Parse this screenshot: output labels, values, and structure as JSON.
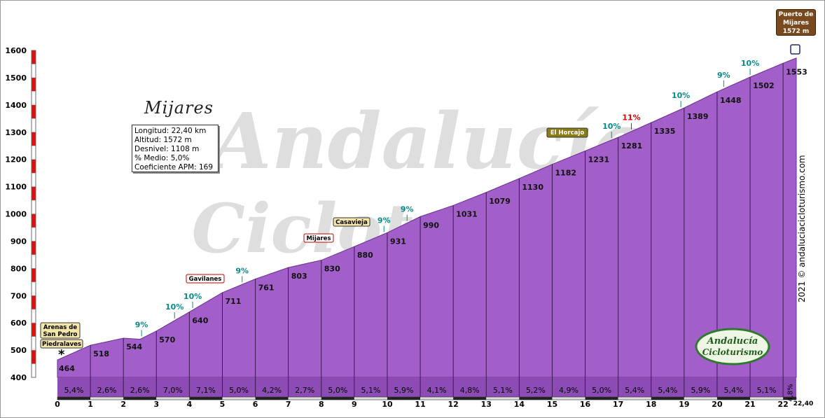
{
  "climb": {
    "name": "Mijares",
    "stats": [
      "Longitud: 22,40 km",
      "Altitud: 1572 m",
      "Desnivel: 1108 m",
      "% Medio: 5,0%",
      "Coeficiente APM: 169"
    ],
    "summit": [
      "Puerto de",
      "Mijares",
      "1572 m"
    ],
    "copyright": "2021 © andaluciacicloturismo.com",
    "logo_text": [
      "Andalucía",
      "Cicloturismo"
    ],
    "watermark_text": [
      "Andalucía",
      "Cicloturismo"
    ]
  },
  "chart_data": {
    "type": "area",
    "title": "",
    "xlabel": "",
    "ylabel": "",
    "xlim": [
      0,
      22.4
    ],
    "ylim": [
      400,
      1600
    ],
    "x_ticks": [
      "0",
      "1",
      "2",
      "3",
      "4",
      "5",
      "6",
      "7",
      "8",
      "9",
      "10",
      "11",
      "12",
      "13",
      "14",
      "15",
      "16",
      "17",
      "18",
      "19",
      "20",
      "21",
      "22"
    ],
    "x_end_label": "22,40",
    "y_ticks": [
      "400",
      "500",
      "600",
      "700",
      "800",
      "900",
      "1000",
      "1100",
      "1200",
      "1300",
      "1400",
      "1500",
      "1600"
    ],
    "profile": {
      "x": [
        0,
        1,
        2,
        2.5,
        3,
        4,
        5,
        6,
        7,
        8,
        9,
        10,
        11,
        12,
        13,
        14,
        15,
        16,
        17,
        18,
        19,
        20,
        21,
        22,
        22.4
      ],
      "y": [
        464,
        518,
        544,
        540,
        570,
        640,
        711,
        761,
        803,
        830,
        880,
        931,
        990,
        1031,
        1079,
        1130,
        1182,
        1231,
        1281,
        1335,
        1389,
        1448,
        1502,
        1553,
        1572
      ]
    },
    "km_labels": {
      "x": [
        0,
        1,
        2,
        3,
        4,
        5,
        6,
        7,
        8,
        9,
        10,
        11,
        12,
        13,
        14,
        15,
        16,
        17,
        18,
        19,
        20,
        21,
        22
      ],
      "y": [
        464,
        518,
        544,
        570,
        640,
        711,
        761,
        803,
        830,
        880,
        931,
        990,
        1031,
        1079,
        1130,
        1182,
        1231,
        1281,
        1335,
        1389,
        1448,
        1502,
        1553
      ],
      "text": [
        "464",
        "518",
        "544",
        "570",
        "640",
        "711",
        "761",
        "803",
        "830",
        "880",
        "931",
        "990",
        "1031",
        "1079",
        "1130",
        "1182",
        "1231",
        "1281",
        "1335",
        "1389",
        "1448",
        "1502",
        "1553"
      ]
    },
    "segment_gradients": [
      "5,4%",
      "2,6%",
      "2,6%",
      "7,0%",
      "7,1%",
      "5,0%",
      "4,2%",
      "2,7%",
      "5,0%",
      "5,1%",
      "5,9%",
      "4,1%",
      "4,8%",
      "5,1%",
      "5,2%",
      "4,9%",
      "5,0%",
      "5,4%",
      "5,4%",
      "5,9%",
      "5,4%",
      "5,1%",
      "4,8%"
    ],
    "ramps": [
      {
        "x": 2.55,
        "text": "9%",
        "color": "#0a8a8a"
      },
      {
        "x": 3.55,
        "text": "10%",
        "color": "#0a8a8a"
      },
      {
        "x": 4.1,
        "text": "10%",
        "color": "#0a8a8a"
      },
      {
        "x": 5.6,
        "text": "9%",
        "color": "#0a8a8a"
      },
      {
        "x": 9.9,
        "text": "9%",
        "color": "#0a8a8a"
      },
      {
        "x": 10.6,
        "text": "9%",
        "color": "#0a8a8a"
      },
      {
        "x": 16.8,
        "text": "10%",
        "color": "#0a8a8a"
      },
      {
        "x": 17.4,
        "text": "11%",
        "color": "#e00000"
      },
      {
        "x": 18.9,
        "text": "10%",
        "color": "#0a8a8a"
      },
      {
        "x": 20.2,
        "text": "9%",
        "color": "#0a8a8a"
      },
      {
        "x": 21.0,
        "text": "10%",
        "color": "#0a8a8a"
      }
    ],
    "places": [
      {
        "name": "Arenas de San Pedro",
        "x": 0.1,
        "style": "tan"
      },
      {
        "name": "Piedralaves",
        "x": 0.1,
        "style": "tan"
      },
      {
        "name": "Gavilanes",
        "x": 4.4,
        "style": "red"
      },
      {
        "name": "Mijares",
        "x": 8.0,
        "style": "red"
      },
      {
        "name": "Casavieja",
        "x": 8.5,
        "style": "tan"
      },
      {
        "name": "El Horcajo",
        "x": 15.4,
        "style": "olive"
      }
    ],
    "colors": {
      "fill": "#a35fc9",
      "fill_dark": "#8d4bb5",
      "grid": "#3a1a4d",
      "ramp_teal": "#0a8a8a",
      "ramp_red": "#e00000",
      "axis_red": "#e01010"
    },
    "grid": true
  }
}
